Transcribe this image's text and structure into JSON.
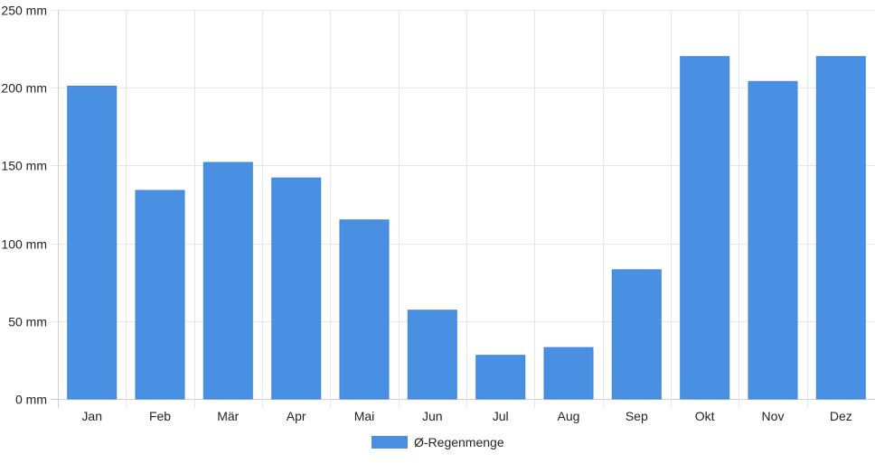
{
  "chart_data": {
    "type": "bar",
    "categories": [
      "Jan",
      "Feb",
      "Mär",
      "Apr",
      "Mai",
      "Jun",
      "Jul",
      "Aug",
      "Sep",
      "Okt",
      "Nov",
      "Dez"
    ],
    "series": [
      {
        "name": "Ø-Regenmenge",
        "values": [
          201,
          134,
          152,
          142,
          115,
          57,
          28,
          33,
          83,
          220,
          204,
          220
        ],
        "color": "#4a90e2"
      }
    ],
    "y_ticks": [
      "0 mm",
      "50 mm",
      "100 mm",
      "150 mm",
      "200 mm",
      "250 mm"
    ],
    "ylim": [
      0,
      250
    ],
    "y_unit": "mm",
    "grid": true,
    "legend_position": "bottom-center"
  }
}
